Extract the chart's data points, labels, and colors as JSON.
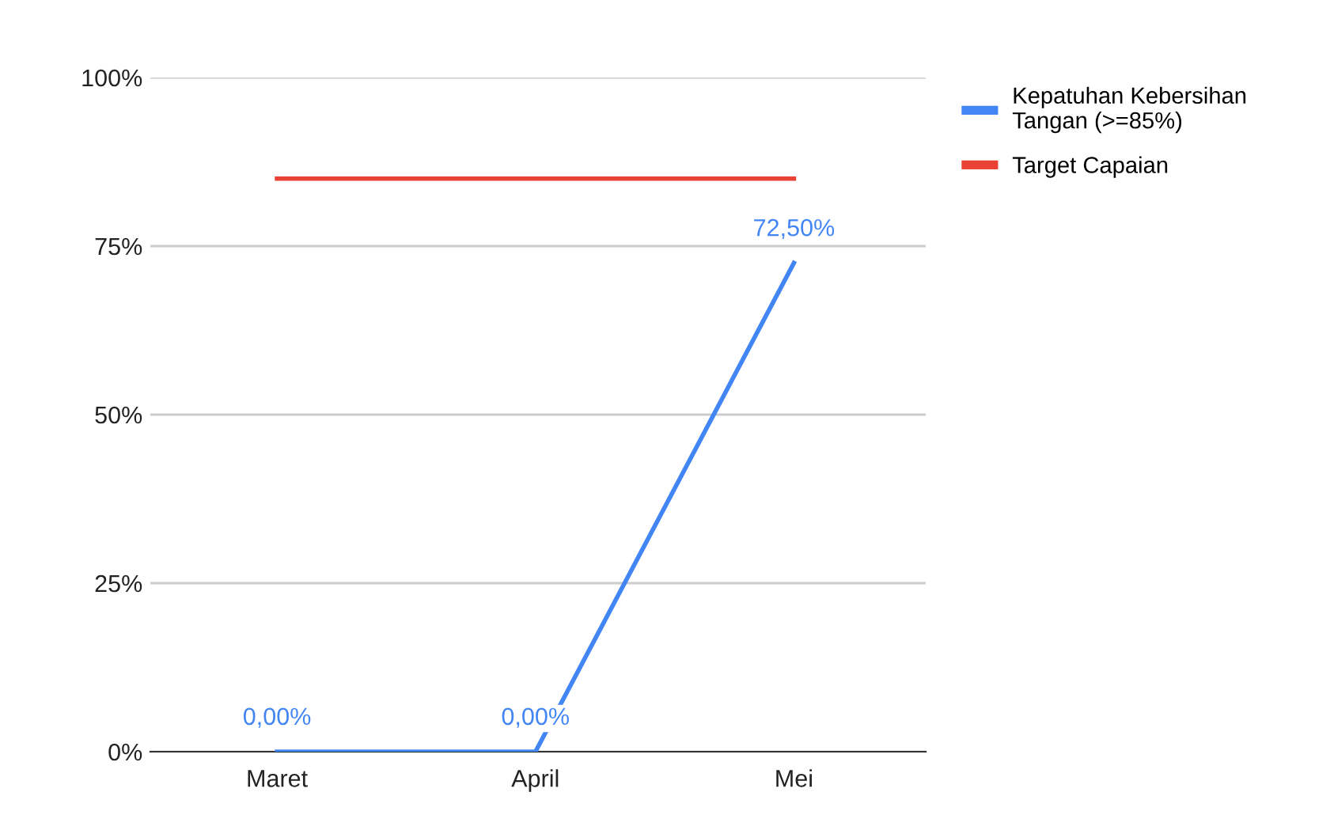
{
  "chart_data": {
    "type": "line",
    "categories": [
      "Maret",
      "April",
      "Mei"
    ],
    "series": [
      {
        "name": "Kepatuhan Kebersihan Tangan (>=85%)",
        "color": "#4285f4",
        "values": [
          0,
          0,
          72.5
        ],
        "value_labels": [
          "0,00%",
          "0,00%",
          "72,50%"
        ]
      },
      {
        "name": "Target Capaian",
        "color": "#ea4335",
        "values": [
          85,
          85,
          85
        ]
      }
    ],
    "ylim": [
      0,
      100
    ],
    "yticks": [
      {
        "value": 0,
        "label": "0%"
      },
      {
        "value": 25,
        "label": "25%"
      },
      {
        "value": 50,
        "label": "50%"
      },
      {
        "value": 75,
        "label": "75%"
      },
      {
        "value": 100,
        "label": "100%"
      }
    ],
    "grid": "y",
    "legend": "top right",
    "marker": "none",
    "line_style": "solid"
  }
}
